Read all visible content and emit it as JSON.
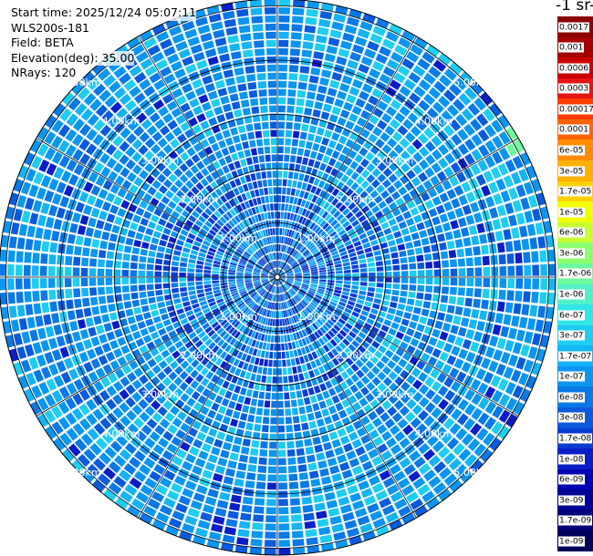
{
  "info": {
    "start_time": "Start time: 2025/12/24 05:07:11",
    "instrument": "WLS200s-181",
    "field": "Field: BETA",
    "elevation": "Elevation(deg): 35.00",
    "nrays": "NRays: 120"
  },
  "colorbar": {
    "unit_fragment": "-1 sr-",
    "ticks": [
      "0.0017",
      "0.001",
      "0.0006",
      "0.0003",
      "0.00017",
      "0.0001",
      "6e-05",
      "3e-05",
      "1.7e-05",
      "1e-05",
      "6e-06",
      "3e-06",
      "1.7e-06",
      "1e-06",
      "6e-07",
      "3e-07",
      "1.7e-07",
      "1e-07",
      "6e-08",
      "3e-08",
      "1.7e-08",
      "1e-08",
      "6e-09",
      "3e-09",
      "1.7e-09",
      "1e-09"
    ],
    "colors": [
      "#8b0000",
      "#a50000",
      "#c80000",
      "#e61414",
      "#ff3c00",
      "#ff6400",
      "#ff8c00",
      "#ffb000",
      "#ffd000",
      "#f0ff00",
      "#c8ff32",
      "#8cff6e",
      "#6efa9e",
      "#50f0c8",
      "#32e6e6",
      "#1ecdf0",
      "#14b4f5",
      "#0a96f0",
      "#0a78e6",
      "#0a5adc",
      "#0a3cd2",
      "#0a1ec8",
      "#0000b4",
      "#000096",
      "#000078",
      "#00005a"
    ]
  },
  "chart_data": {
    "type": "heatmap",
    "projection": "polar PPI scan",
    "field": "BETA",
    "elevation_deg": 35.0,
    "n_rays": 120,
    "range_rings_km": [
      1,
      2,
      3,
      4,
      5
    ],
    "range_ring_labels": [
      "1.00km",
      "2.00km",
      "3.00km",
      "4.00km",
      "5.00km"
    ],
    "typical_value": "1e-07 to 6e-08",
    "color_scale": "log",
    "colorbar_range": [
      1e-09,
      0.0017
    ]
  }
}
